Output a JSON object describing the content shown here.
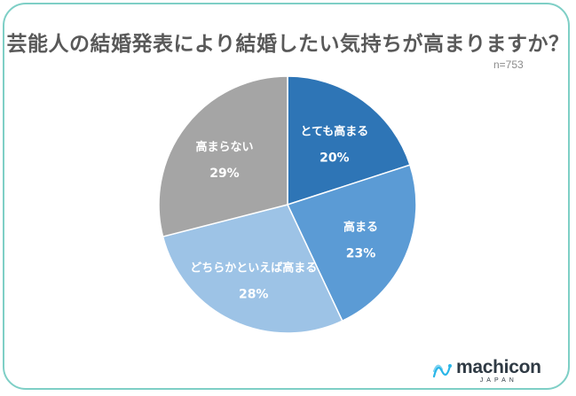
{
  "chart_data": {
    "type": "pie",
    "title": "芸能人の結婚発表により結婚したい気持ちが高まりますか？",
    "subtitle": "n=753",
    "slices": [
      {
        "label": "とても高まる",
        "value": 20,
        "value_label": "20%",
        "color": "#2e75b6"
      },
      {
        "label": "高まる",
        "value": 23,
        "value_label": "23%",
        "color": "#5b9bd5"
      },
      {
        "label": "どちらかといえば高まる",
        "value": 28,
        "value_label": "28%",
        "color": "#9dc3e6"
      },
      {
        "label": "高まらない",
        "value": 29,
        "value_label": "29%",
        "color": "#a5a5a5"
      }
    ],
    "start_angle_deg": 0,
    "direction": "clockwise",
    "legend": "none"
  },
  "brand": {
    "name": "machicon",
    "sub": "JAPAN",
    "mark_color": "#29b6e8",
    "frame_color": "#7ecfc6"
  }
}
